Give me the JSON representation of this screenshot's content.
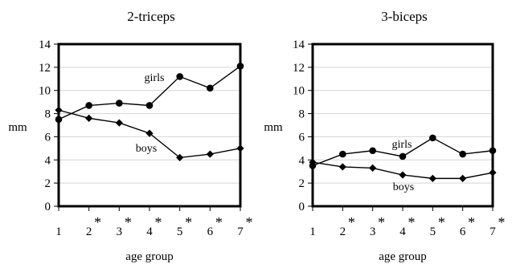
{
  "chart_data": [
    {
      "type": "line",
      "title": "2-triceps",
      "xlabel": "age group",
      "ylabel": "mm",
      "ylim": [
        0,
        14
      ],
      "yticks": [
        "0",
        "2",
        "4",
        "6",
        "8",
        "10",
        "12",
        "14"
      ],
      "categories": [
        "1",
        "2",
        "3",
        "4",
        "5",
        "6",
        "7"
      ],
      "significant": [
        false,
        true,
        true,
        true,
        true,
        true,
        true
      ],
      "significance_mark": "*",
      "grid": true,
      "series": [
        {
          "name": "girls",
          "marker": "circle",
          "values": [
            7.5,
            8.7,
            8.9,
            8.7,
            11.2,
            10.2,
            12.1
          ]
        },
        {
          "name": "boys",
          "marker": "diamond",
          "values": [
            8.3,
            7.6,
            7.2,
            6.3,
            4.2,
            4.5,
            5.0
          ]
        }
      ]
    },
    {
      "type": "line",
      "title": "3-biceps",
      "xlabel": "age group",
      "ylabel": "mm",
      "ylim": [
        0,
        14
      ],
      "yticks": [
        "0",
        "2",
        "4",
        "6",
        "8",
        "10",
        "12",
        "14"
      ],
      "categories": [
        "1",
        "2",
        "3",
        "4",
        "5",
        "6",
        "7"
      ],
      "significant": [
        false,
        true,
        true,
        true,
        true,
        true,
        true
      ],
      "significance_mark": "*",
      "grid": true,
      "series": [
        {
          "name": "girls",
          "marker": "circle",
          "values": [
            3.5,
            4.5,
            4.8,
            4.3,
            5.9,
            4.5,
            4.8
          ]
        },
        {
          "name": "boys",
          "marker": "diamond",
          "values": [
            3.8,
            3.4,
            3.3,
            2.7,
            2.4,
            2.4,
            2.9
          ]
        }
      ]
    }
  ]
}
